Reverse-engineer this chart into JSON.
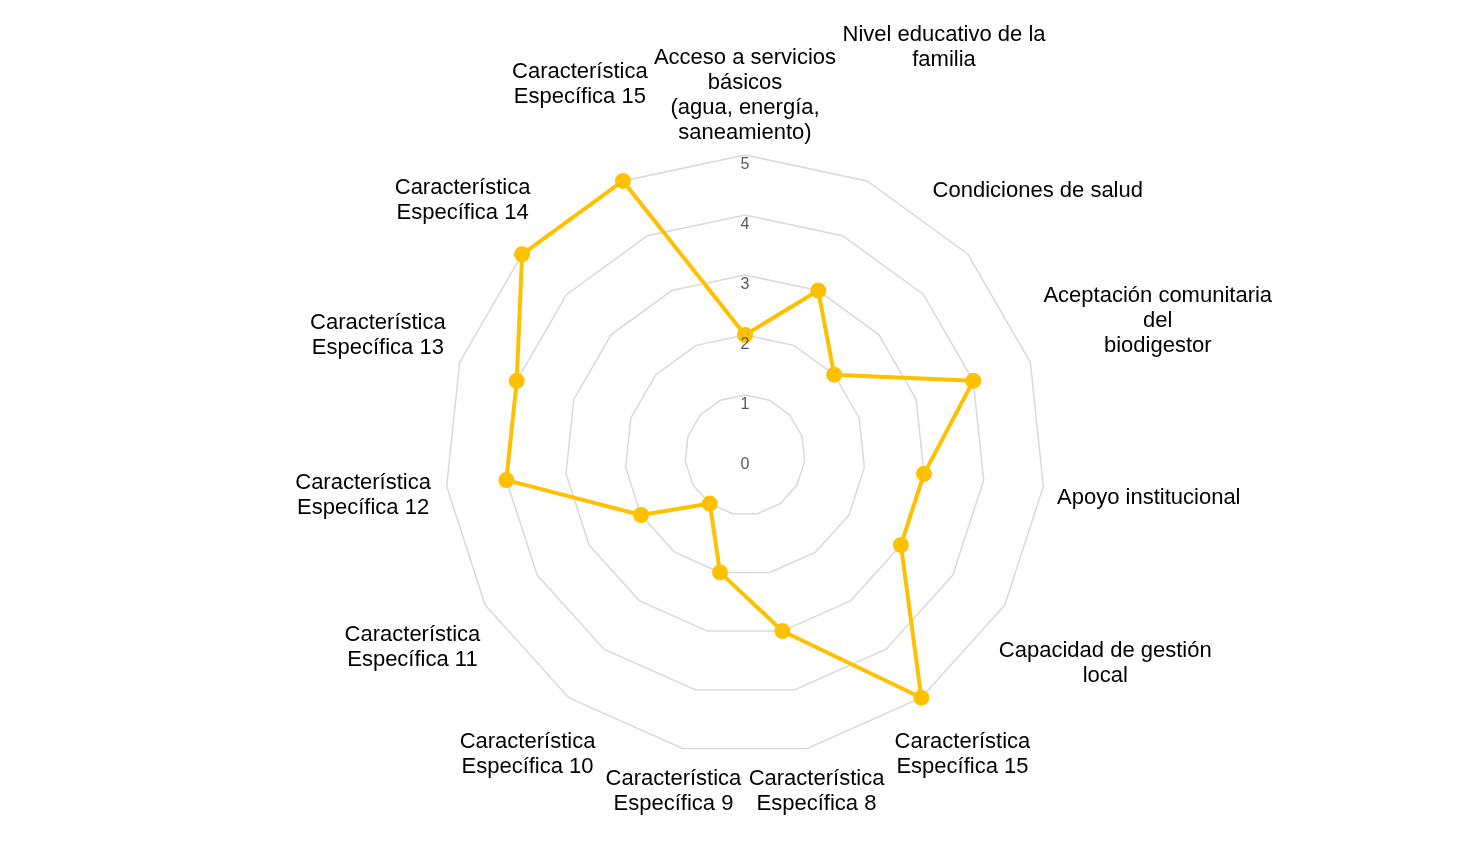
{
  "chart_data": {
    "type": "radar",
    "categories": [
      "Acceso a servicios básicos\n(agua, energía, saneamiento)",
      "Nivel educativo de la familia",
      "Condiciones de salud",
      "Aceptación comunitaria del\nbiodigestor",
      "Apoyo institucional",
      "Capacidad de gestión local",
      "Característica Específica 15",
      "Característica Específica 8",
      "Característica Específica 9",
      "Característica Específica 10",
      "Característica Específica 11",
      "Característica Específica 12",
      "Característica Específica 13",
      "Característica Específica 14",
      "Característica Específica 15"
    ],
    "series": [
      {
        "color": "#ffc000",
        "values": [
          2,
          3,
          2,
          4,
          3,
          3,
          5,
          3,
          2,
          1,
          2,
          4,
          4,
          5,
          5
        ]
      }
    ],
    "ylim": [
      0,
      5
    ],
    "yticks": [
      0,
      1,
      2,
      3,
      4,
      5
    ],
    "grid": true,
    "marker": "circle",
    "legend": false
  }
}
